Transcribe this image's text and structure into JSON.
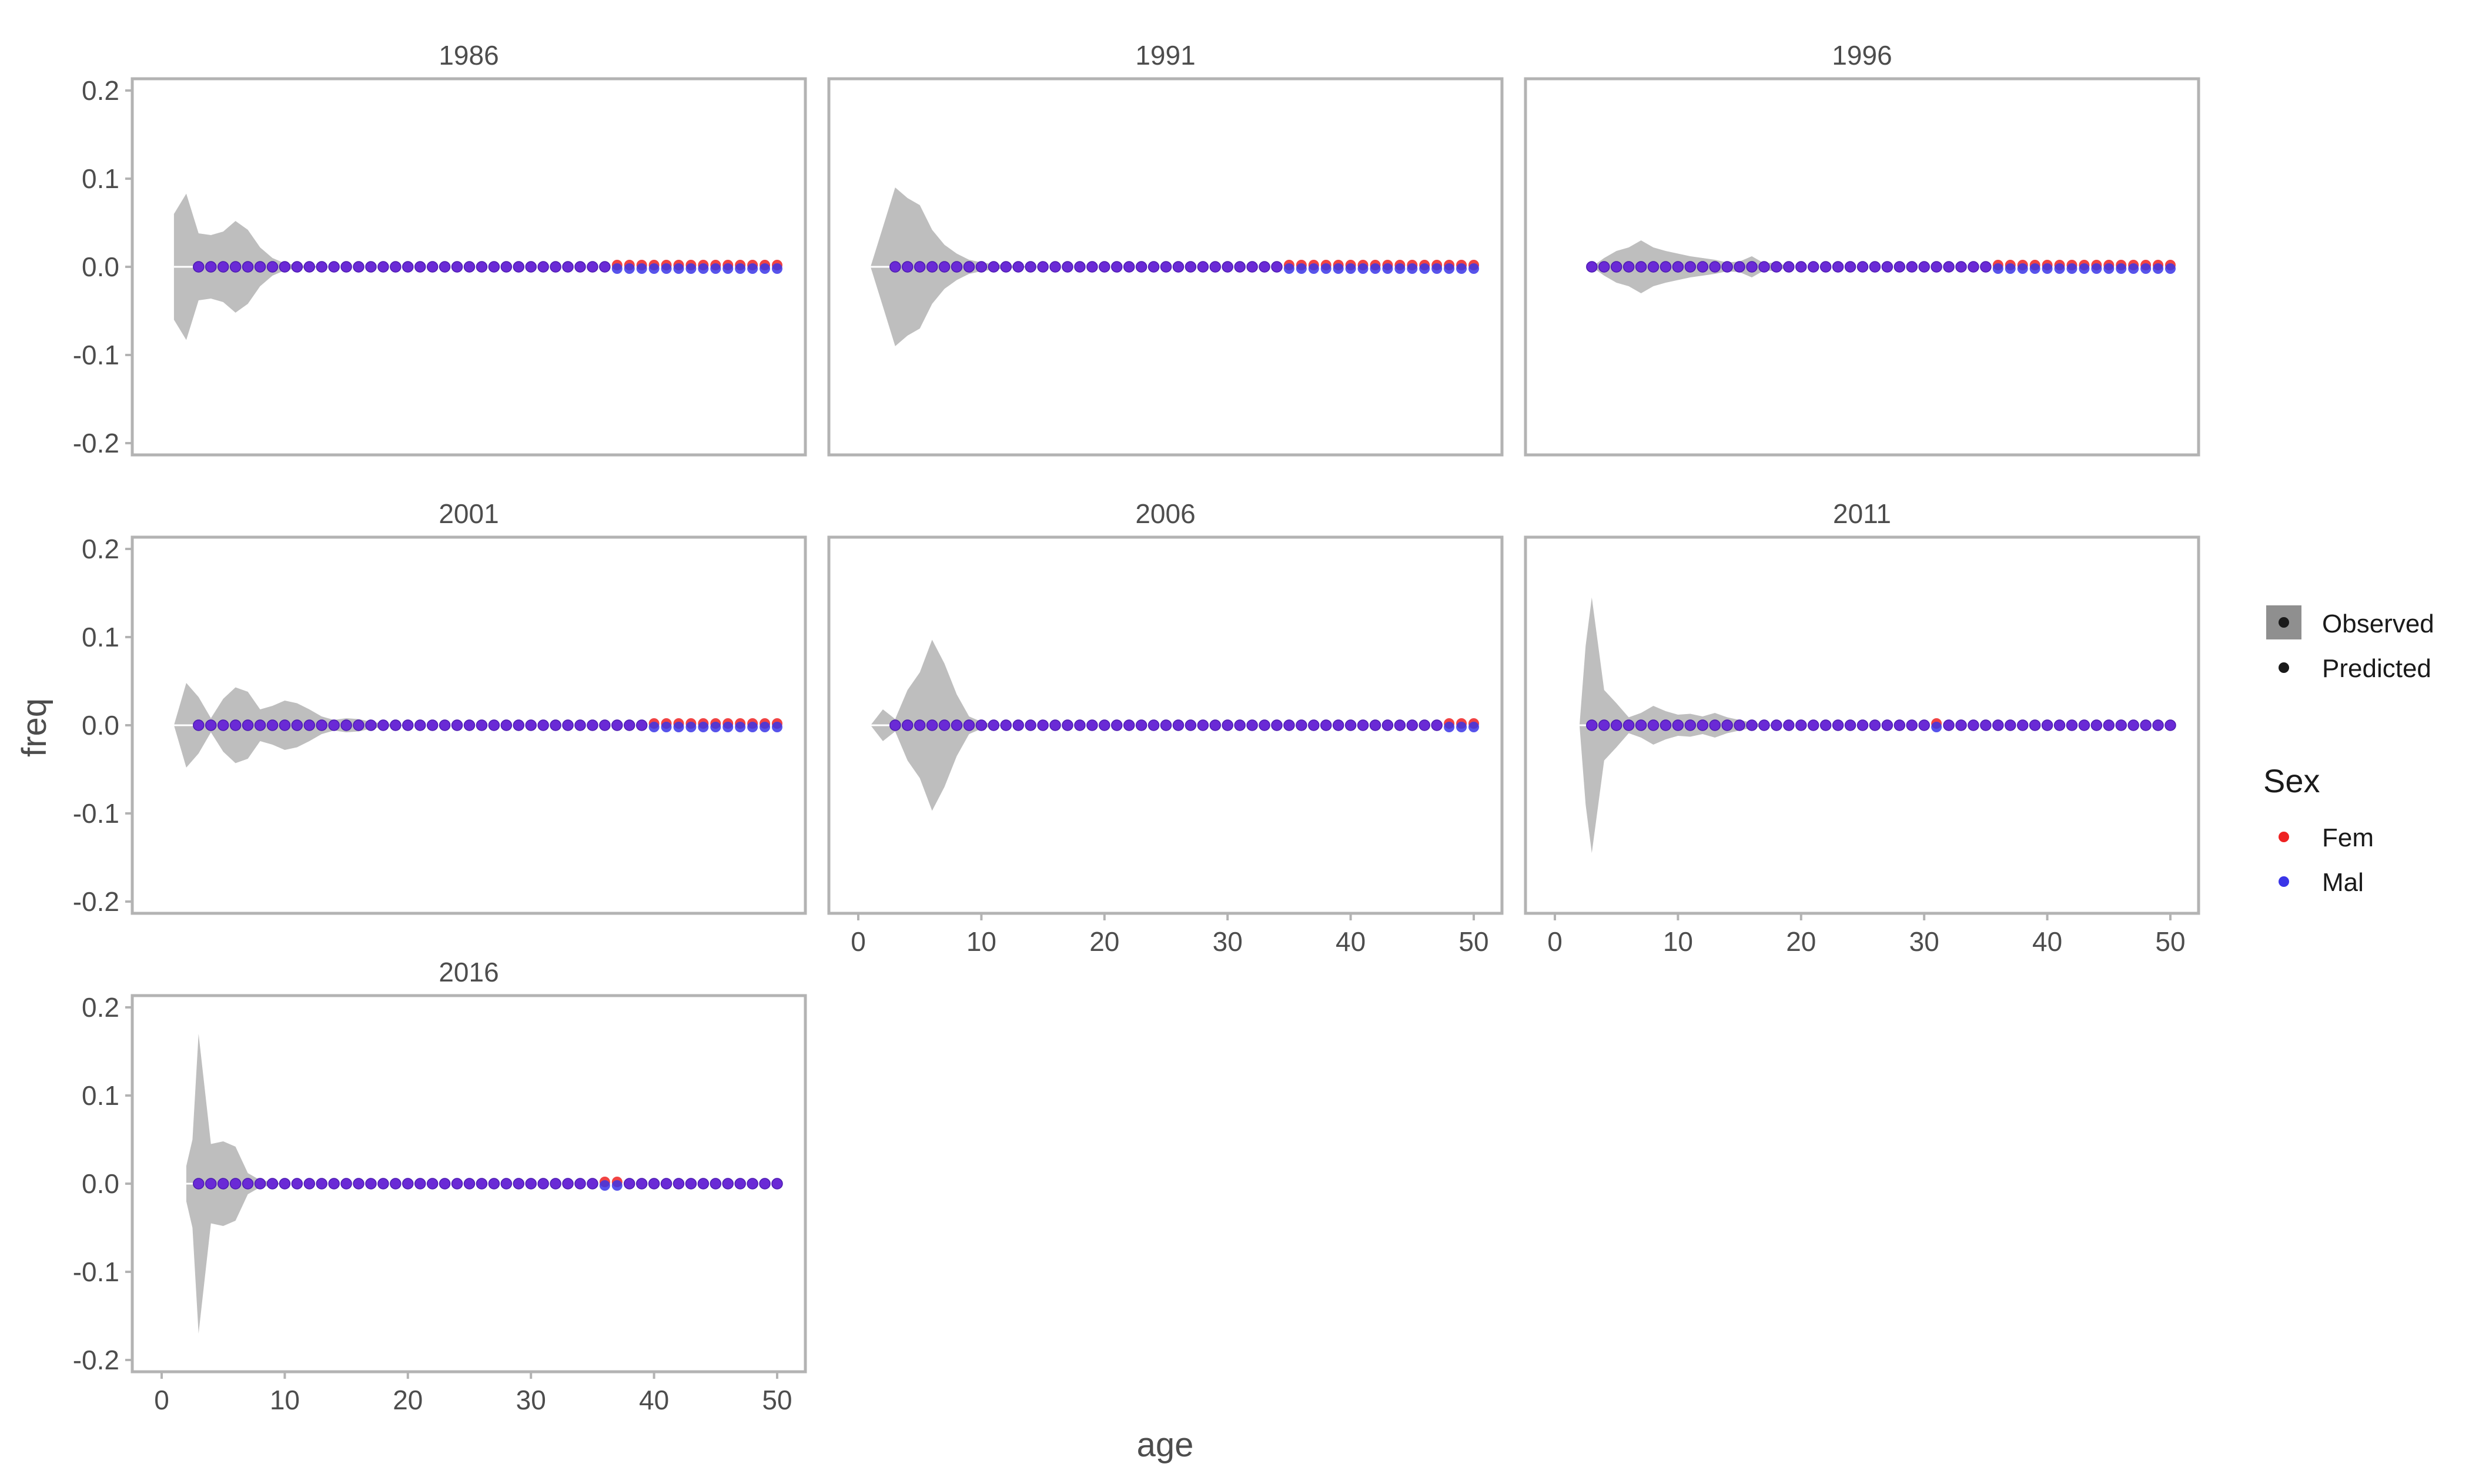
{
  "chart_data": {
    "type": "area",
    "facet_by": "year",
    "xlabel": "age",
    "ylabel": "freq",
    "xlim": [
      0,
      50
    ],
    "ylim": [
      -0.2,
      0.2
    ],
    "x_ticks": [
      0,
      10,
      20,
      30,
      40,
      50
    ],
    "y_ticks": [
      -0.2,
      -0.1,
      0.0,
      0.1,
      0.2
    ],
    "y_tick_labels": [
      "-0.2",
      "-0.1",
      "0.0",
      "0.1",
      "0.2"
    ],
    "grid": false,
    "legend_position": "right",
    "legend": {
      "type_entries": [
        "Observed",
        "Predicted"
      ],
      "sex_title": "Sex",
      "sex_entries": [
        "Fem",
        "Mal"
      ]
    },
    "colors": {
      "observed_fill": "#bebebe",
      "fem": "#ee2222",
      "mal": "#3a35e8",
      "overlap": "#6a2ad6",
      "panel_border": "#b3b3b3",
      "text": "#4d4d4d"
    },
    "panels": [
      {
        "year": "1986",
        "observed": [
          [
            1,
            0.06
          ],
          [
            2,
            0.083
          ],
          [
            3,
            0.038
          ],
          [
            4,
            0.036
          ],
          [
            5,
            0.04
          ],
          [
            6,
            0.052
          ],
          [
            7,
            0.042
          ],
          [
            8,
            0.022
          ],
          [
            9,
            0.01
          ],
          [
            10,
            0.004
          ],
          [
            11,
            0.002
          ],
          [
            12,
            0.001
          ],
          [
            14,
            0.0
          ],
          [
            50,
            0.0
          ]
        ],
        "predicted_fem": {
          "ages": [
            3,
            50
          ],
          "value": 0.0
        },
        "predicted_mal": {
          "ages": [
            3,
            50
          ],
          "value": 0.0
        },
        "fem_offset_ages": [
          37,
          50
        ]
      },
      {
        "year": "1991",
        "observed": [
          [
            1,
            0.0
          ],
          [
            2,
            0.045
          ],
          [
            3,
            0.09
          ],
          [
            4,
            0.078
          ],
          [
            5,
            0.07
          ],
          [
            6,
            0.042
          ],
          [
            7,
            0.025
          ],
          [
            8,
            0.015
          ],
          [
            9,
            0.008
          ],
          [
            10,
            0.005
          ],
          [
            11,
            0.003
          ],
          [
            13,
            0.001
          ],
          [
            15,
            0.0
          ],
          [
            50,
            0.0
          ]
        ],
        "predicted_fem": {
          "ages": [
            3,
            50
          ],
          "value": 0.0
        },
        "predicted_mal": {
          "ages": [
            3,
            50
          ],
          "value": 0.0
        },
        "fem_offset_ages": [
          35,
          50
        ]
      },
      {
        "year": "1996",
        "observed": [
          [
            3,
            0.0
          ],
          [
            4,
            0.01
          ],
          [
            5,
            0.018
          ],
          [
            6,
            0.022
          ],
          [
            7,
            0.03
          ],
          [
            8,
            0.022
          ],
          [
            9,
            0.018
          ],
          [
            10,
            0.015
          ],
          [
            11,
            0.012
          ],
          [
            12,
            0.01
          ],
          [
            13,
            0.008
          ],
          [
            14,
            0.005
          ],
          [
            15,
            0.006
          ],
          [
            16,
            0.012
          ],
          [
            17,
            0.004
          ],
          [
            18,
            0.005
          ],
          [
            19,
            0.0
          ],
          [
            50,
            0.0
          ]
        ],
        "predicted_fem": {
          "ages": [
            3,
            50
          ],
          "value": 0.0
        },
        "predicted_mal": {
          "ages": [
            3,
            50
          ],
          "value": 0.0
        },
        "fem_offset_ages": [
          36,
          50
        ]
      },
      {
        "year": "2001",
        "observed": [
          [
            1,
            0.0
          ],
          [
            2,
            0.048
          ],
          [
            3,
            0.032
          ],
          [
            4,
            0.008
          ],
          [
            5,
            0.03
          ],
          [
            6,
            0.043
          ],
          [
            7,
            0.038
          ],
          [
            8,
            0.018
          ],
          [
            9,
            0.022
          ],
          [
            10,
            0.028
          ],
          [
            11,
            0.025
          ],
          [
            12,
            0.018
          ],
          [
            13,
            0.01
          ],
          [
            14,
            0.006
          ],
          [
            15,
            0.008
          ],
          [
            16,
            0.007
          ],
          [
            17,
            0.004
          ],
          [
            18,
            0.002
          ],
          [
            20,
            0.0
          ],
          [
            50,
            0.0
          ]
        ],
        "predicted_fem": {
          "ages": [
            3,
            50
          ],
          "value": 0.0
        },
        "predicted_mal": {
          "ages": [
            3,
            50
          ],
          "value": 0.0
        },
        "fem_offset_ages": [
          40,
          50
        ]
      },
      {
        "year": "2006",
        "observed": [
          [
            1,
            0.0
          ],
          [
            2,
            0.018
          ],
          [
            3,
            0.007
          ],
          [
            4,
            0.04
          ],
          [
            5,
            0.06
          ],
          [
            6,
            0.097
          ],
          [
            7,
            0.07
          ],
          [
            8,
            0.035
          ],
          [
            9,
            0.01
          ],
          [
            10,
            0.004
          ],
          [
            11,
            0.001
          ],
          [
            12,
            0.0
          ],
          [
            50,
            0.0
          ]
        ],
        "predicted_fem": {
          "ages": [
            3,
            50
          ],
          "value": 0.0
        },
        "predicted_mal": {
          "ages": [
            3,
            50
          ],
          "value": 0.0
        },
        "fem_offset_ages": [
          48,
          50
        ]
      },
      {
        "year": "2011",
        "observed": [
          [
            2,
            0.0
          ],
          [
            2.5,
            0.09
          ],
          [
            3,
            0.145
          ],
          [
            4,
            0.04
          ],
          [
            5,
            0.025
          ],
          [
            6,
            0.009
          ],
          [
            7,
            0.014
          ],
          [
            8,
            0.022
          ],
          [
            9,
            0.016
          ],
          [
            10,
            0.012
          ],
          [
            11,
            0.013
          ],
          [
            12,
            0.01
          ],
          [
            13,
            0.014
          ],
          [
            14,
            0.009
          ],
          [
            15,
            0.006
          ],
          [
            16,
            0.003
          ],
          [
            17,
            0.001
          ],
          [
            18,
            0.0
          ],
          [
            50,
            0.0
          ]
        ],
        "predicted_fem": {
          "ages": [
            3,
            50
          ],
          "value": 0.0
        },
        "predicted_mal": {
          "ages": [
            3,
            50
          ],
          "value": 0.0
        },
        "fem_offset_ages": [
          31
        ]
      },
      {
        "year": "2016",
        "observed": [
          [
            2,
            0.02
          ],
          [
            2.5,
            0.05
          ],
          [
            3,
            0.17
          ],
          [
            4,
            0.045
          ],
          [
            5,
            0.048
          ],
          [
            6,
            0.042
          ],
          [
            7,
            0.012
          ],
          [
            8,
            0.004
          ],
          [
            9,
            0.002
          ],
          [
            10,
            0.0
          ],
          [
            50,
            0.0
          ]
        ],
        "predicted_fem": {
          "ages": [
            3,
            50
          ],
          "value": 0.0
        },
        "predicted_mal": {
          "ages": [
            3,
            50
          ],
          "value": 0.0
        },
        "fem_offset_ages": [
          36,
          37
        ]
      }
    ]
  }
}
